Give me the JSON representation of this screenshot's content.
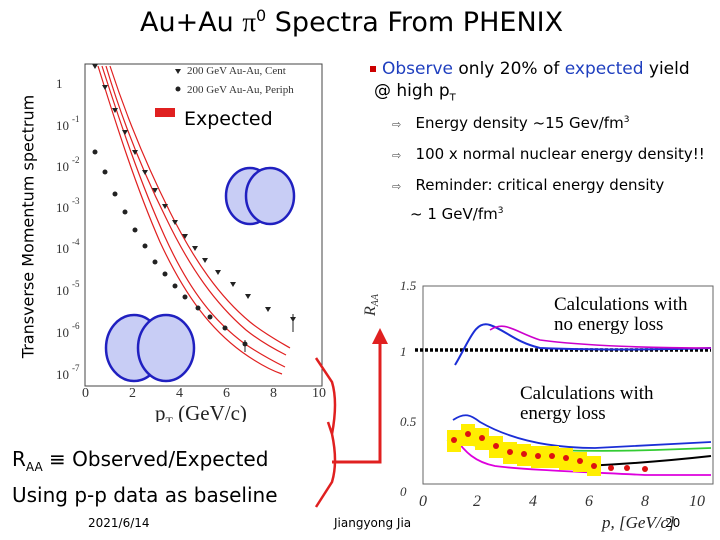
{
  "slide": {
    "title_prefix": "Au+Au ",
    "title_pi": "π",
    "title_sup": "0",
    "title_suffix": " Spectra From PHENIX",
    "y_axis_title": "Transverse Momentum spectrum"
  },
  "spectra_plot": {
    "legend_cent": "200 GeV Au-Au, Cent",
    "legend_periph": "200 GeV Au-Au, Periph",
    "y_ticks": [
      "1",
      "10",
      "10",
      "10",
      "10",
      "10",
      "10",
      "10"
    ],
    "y_tick_exps": [
      "",
      "-1",
      "-2",
      "-3",
      "-4",
      "-5",
      "-6",
      "-7"
    ],
    "x_ticks": [
      "0",
      "2",
      "4",
      "6",
      "8",
      "10"
    ],
    "x_label_p": "p",
    "x_label_sub": "T",
    "x_label_rest": " (GeV/c)"
  },
  "expected_label": "Expected",
  "bullets": {
    "main_observe": "Observe",
    "main_mid": " only 20% of ",
    "main_expected": "expected",
    "main_end": " yield",
    "main_line2": "@ high p",
    "main_line2_sub": "T",
    "items": [
      {
        "text": "Energy density ~15 Gev/fm",
        "sup": "3"
      },
      {
        "text": "100 x normal nuclear energy density!!",
        "sup": ""
      },
      {
        "text": "Reminder: critical energy density",
        "sup": ""
      }
    ],
    "item3_line2": "~ 1 GeV/fm",
    "item3_line2_sup": "3"
  },
  "raa_plot": {
    "y_label_r": "R",
    "y_label_sub": "AA",
    "y_ticks": [
      "1.5",
      "1",
      "0.5",
      "0"
    ],
    "x_ticks": [
      "0",
      "2",
      "4",
      "6",
      "8",
      "10"
    ],
    "x_label_p": "p",
    "x_label_rest": ", [GeV/c]",
    "no_loss_label_l1": "Calculations with",
    "no_loss_label_l2": "no energy loss",
    "loss_label_l1": "Calculations with",
    "loss_label_l2": "energy loss"
  },
  "raa_definition": {
    "r": "R",
    "sub": "AA",
    "rest": " ≡ Observed/Expected"
  },
  "baseline_text": "Using p-p data as baseline",
  "footer": {
    "date": "2021/6/14",
    "author": "Jiangyong Jia",
    "page": "20"
  },
  "colors": {
    "accent_blue": "#1f3fbf",
    "bullet_red": "#cc0000",
    "spectra_band": "#e02020",
    "circle_fill": "#c8cdf5",
    "circle_stroke": "#2020c0"
  }
}
